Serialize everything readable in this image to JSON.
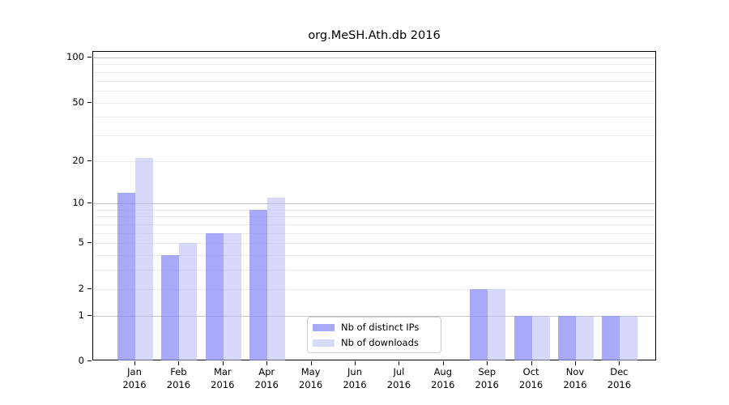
{
  "title": "org.MeSH.Ath.db 2016",
  "chart_data": {
    "type": "bar",
    "title": "org.MeSH.Ath.db 2016",
    "categories": [
      "Jan 2016",
      "Feb 2016",
      "Mar 2016",
      "Apr 2016",
      "May 2016",
      "Jun 2016",
      "Jul 2016",
      "Aug 2016",
      "Sep 2016",
      "Oct 2016",
      "Nov 2016",
      "Dec 2016"
    ],
    "month_labels": [
      "Jan",
      "Feb",
      "Mar",
      "Apr",
      "May",
      "Jun",
      "Jul",
      "Aug",
      "Sep",
      "Oct",
      "Nov",
      "Dec"
    ],
    "year_label": "2016",
    "series": [
      {
        "name": "Nb of distinct IPs",
        "color": "rgba(137,137,248,0.73)",
        "solid_color": "#a9a9fa",
        "values": [
          12,
          4,
          6,
          9,
          0,
          0,
          0,
          0,
          2,
          1,
          1,
          1
        ]
      },
      {
        "name": "Nb of downloads",
        "color": "rgba(185,185,246,0.56)",
        "solid_color": "#d9d9fa",
        "values": [
          21,
          5,
          6,
          11,
          0,
          0,
          0,
          0,
          2,
          1,
          1,
          1
        ]
      }
    ],
    "y_axis": {
      "scale": "log1p",
      "ticks": [
        0,
        1,
        2,
        5,
        10,
        20,
        50,
        100
      ],
      "range_max": 100,
      "major_gridlines": [
        1,
        10,
        100
      ],
      "minor_gridlines": [
        2,
        3,
        4,
        5,
        6,
        7,
        8,
        9,
        20,
        30,
        40,
        50,
        60,
        70,
        80,
        90
      ]
    },
    "legend": {
      "position": "bottom-center-left"
    },
    "colors": {
      "major_grid": "#c3c3c3",
      "minor_grid": "#ebebeb",
      "spine": "#000000",
      "background": "#ffffff"
    }
  }
}
